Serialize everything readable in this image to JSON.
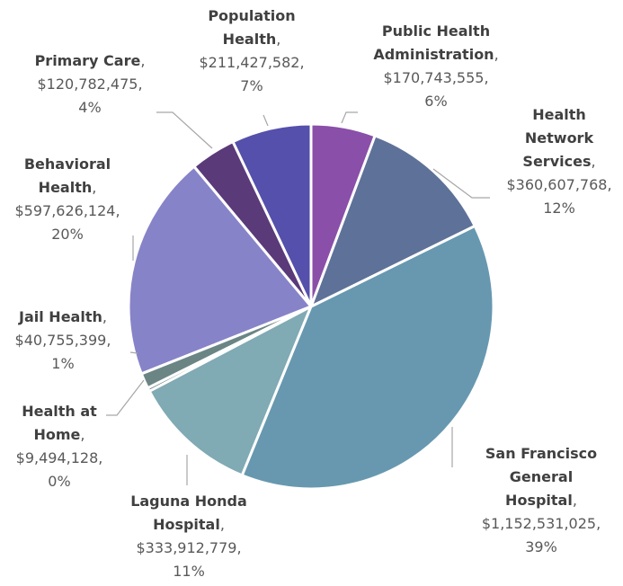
{
  "chart_data": {
    "type": "pie",
    "categories": [
      "Public Health Administration",
      "Health Network Services",
      "San Francisco General Hospital",
      "Laguna Honda Hospital",
      "Health at Home",
      "Jail Health",
      "Behavioral Health",
      "Primary Care",
      "Population Health"
    ],
    "values": [
      170743555,
      360607768,
      1152531025,
      333912779,
      9494128,
      40755399,
      597626124,
      120782475,
      211427582
    ],
    "value_labels": [
      "$170,743,555",
      "$360,607,768",
      "$1,152,531,025",
      "$333,912,779",
      "$9,494,128",
      "$40,755,399",
      "$597,626,124",
      "$120,782,475",
      "$211,427,582"
    ],
    "percentages": [
      6,
      12,
      39,
      11,
      0,
      1,
      20,
      4,
      7
    ],
    "percent_labels": [
      "6%",
      "12%",
      "39%",
      "11%",
      "0%",
      "1%",
      "20%",
      "4%",
      "7%"
    ],
    "separator": ",",
    "colors": [
      "#8a4fa8",
      "#5e7198",
      "#6798b0",
      "#80aab4",
      "#6a7f84",
      "#6b8585",
      "#8783c8",
      "#5b3a79",
      "#5550ab"
    ]
  }
}
